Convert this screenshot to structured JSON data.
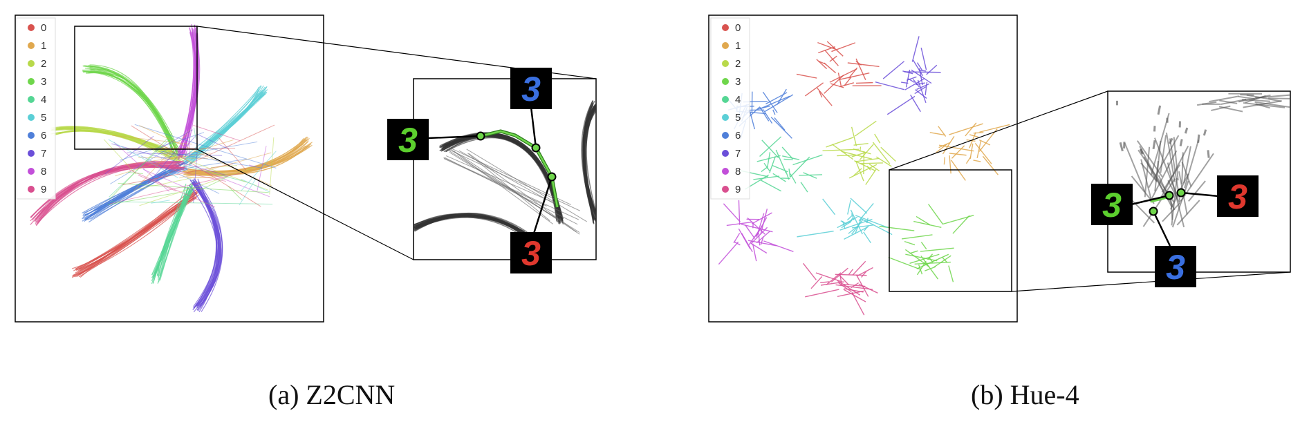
{
  "figure": {
    "panels": [
      {
        "id": "a",
        "caption": "(a) Z2CNN",
        "legend": [
          "0",
          "1",
          "2",
          "3",
          "4",
          "5",
          "6",
          "7",
          "8",
          "9"
        ],
        "inset_digits": [
          "3",
          "3",
          "3"
        ]
      },
      {
        "id": "b",
        "caption": "(b) Hue-4",
        "legend": [
          "0",
          "1",
          "2",
          "3",
          "4",
          "5",
          "6",
          "7",
          "8",
          "9"
        ],
        "inset_digits": [
          "3",
          "3",
          "3"
        ]
      }
    ],
    "class_colors": [
      "#d9534f",
      "#e0a84e",
      "#b8d94a",
      "#6fd64b",
      "#55d694",
      "#5bcfd6",
      "#4f7fd9",
      "#6b4fd9",
      "#c24fd9",
      "#d94f8f"
    ],
    "digit_colors": {
      "green": "#5ccf2e",
      "blue": "#3a6fe0",
      "red": "#e0382e"
    }
  }
}
